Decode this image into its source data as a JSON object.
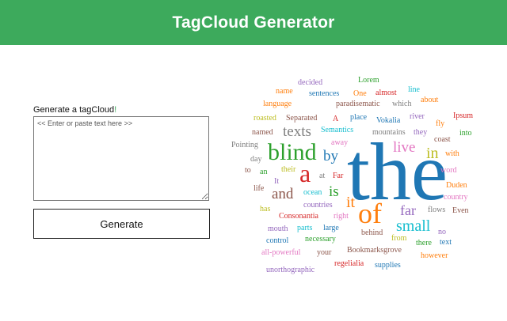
{
  "header": {
    "title": "TagCloud Generator"
  },
  "form": {
    "label": "Generate a tagCloud",
    "label_suffix": "!",
    "placeholder": "<< Enter or paste text here >>",
    "button_label": "Generate"
  },
  "colors": {
    "header_bg": "#3daa5c",
    "accent": "#3daa5c"
  },
  "tag_cloud": {
    "words": [
      {
        "text": "the",
        "color": "#1f77b4"
      },
      {
        "text": "blind",
        "color": "#2ca02c"
      },
      {
        "text": "of",
        "color": "#ff7f0e"
      },
      {
        "text": "a",
        "color": "#d62728"
      },
      {
        "text": "texts",
        "color": "#7f7f7f"
      },
      {
        "text": "by",
        "color": "#1f77b4"
      },
      {
        "text": "live",
        "color": "#e377c2"
      },
      {
        "text": "in",
        "color": "#bcbd22"
      },
      {
        "text": "and",
        "color": "#8c564b"
      },
      {
        "text": "is",
        "color": "#2ca02c"
      },
      {
        "text": "it",
        "color": "#ff7f0e"
      },
      {
        "text": "far",
        "color": "#9467bd"
      },
      {
        "text": "small",
        "color": "#17becf"
      },
      {
        "text": "decided",
        "color": "#9467bd"
      },
      {
        "text": "Lorem",
        "color": "#2ca02c"
      },
      {
        "text": "name",
        "color": "#ff7f0e"
      },
      {
        "text": "sentences",
        "color": "#1f77b4"
      },
      {
        "text": "One",
        "color": "#ff7f0e"
      },
      {
        "text": "almost",
        "color": "#d62728"
      },
      {
        "text": "line",
        "color": "#17becf"
      },
      {
        "text": "language",
        "color": "#ff7f0e"
      },
      {
        "text": "paradisematic",
        "color": "#8c564b"
      },
      {
        "text": "which",
        "color": "#7f7f7f"
      },
      {
        "text": "about",
        "color": "#ff7f0e"
      },
      {
        "text": "roasted",
        "color": "#bcbd22"
      },
      {
        "text": "Separated",
        "color": "#8c564b"
      },
      {
        "text": "A",
        "color": "#d62728"
      },
      {
        "text": "place",
        "color": "#1f77b4"
      },
      {
        "text": "Vokalia",
        "color": "#1f77b4"
      },
      {
        "text": "river",
        "color": "#9467bd"
      },
      {
        "text": "fly",
        "color": "#ff7f0e"
      },
      {
        "text": "Ipsum",
        "color": "#d62728"
      },
      {
        "text": "named",
        "color": "#8c564b"
      },
      {
        "text": "Semantics",
        "color": "#17becf"
      },
      {
        "text": "mountains",
        "color": "#7f7f7f"
      },
      {
        "text": "they",
        "color": "#9467bd"
      },
      {
        "text": "into",
        "color": "#2ca02c"
      },
      {
        "text": "away",
        "color": "#e377c2"
      },
      {
        "text": "coast",
        "color": "#8c564b"
      },
      {
        "text": "Pointing",
        "color": "#7f7f7f"
      },
      {
        "text": "with",
        "color": "#ff7f0e"
      },
      {
        "text": "day",
        "color": "#7f7f7f"
      },
      {
        "text": "to",
        "color": "#8c564b"
      },
      {
        "text": "an",
        "color": "#2ca02c"
      },
      {
        "text": "their",
        "color": "#bcbd22"
      },
      {
        "text": "at",
        "color": "#7f7f7f"
      },
      {
        "text": "Far",
        "color": "#d62728"
      },
      {
        "text": "word",
        "color": "#e377c2"
      },
      {
        "text": "It",
        "color": "#9467bd"
      },
      {
        "text": "Duden",
        "color": "#ff7f0e"
      },
      {
        "text": "life",
        "color": "#8c564b"
      },
      {
        "text": "ocean",
        "color": "#17becf"
      },
      {
        "text": "country",
        "color": "#e377c2"
      },
      {
        "text": "countries",
        "color": "#9467bd"
      },
      {
        "text": "has",
        "color": "#bcbd22"
      },
      {
        "text": "flows",
        "color": "#7f7f7f"
      },
      {
        "text": "Even",
        "color": "#8c564b"
      },
      {
        "text": "Consonantia",
        "color": "#d62728"
      },
      {
        "text": "right",
        "color": "#e377c2"
      },
      {
        "text": "mouth",
        "color": "#9467bd"
      },
      {
        "text": "parts",
        "color": "#17becf"
      },
      {
        "text": "large",
        "color": "#1f77b4"
      },
      {
        "text": "no",
        "color": "#9467bd"
      },
      {
        "text": "behind",
        "color": "#8c564b"
      },
      {
        "text": "control",
        "color": "#1f77b4"
      },
      {
        "text": "necessary",
        "color": "#2ca02c"
      },
      {
        "text": "from",
        "color": "#bcbd22"
      },
      {
        "text": "there",
        "color": "#2ca02c"
      },
      {
        "text": "text",
        "color": "#1f77b4"
      },
      {
        "text": "all-powerful",
        "color": "#e377c2"
      },
      {
        "text": "your",
        "color": "#8c564b"
      },
      {
        "text": "Bookmarksgrove",
        "color": "#8c564b"
      },
      {
        "text": "however",
        "color": "#ff7f0e"
      },
      {
        "text": "regelialia",
        "color": "#d62728"
      },
      {
        "text": "supplies",
        "color": "#1f77b4"
      },
      {
        "text": "unorthographic",
        "color": "#9467bd"
      }
    ]
  }
}
